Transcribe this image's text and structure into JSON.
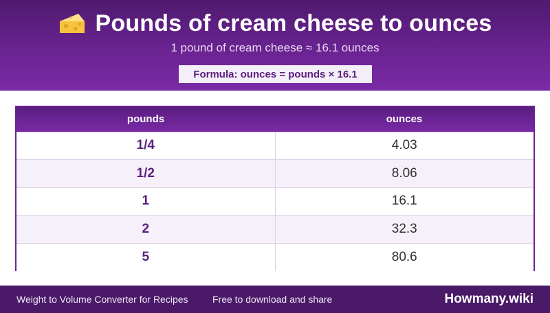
{
  "header": {
    "title": "Pounds of cream cheese to ounces",
    "icon": "cheese-icon",
    "subtitle": "1 pound of cream cheese ≈ 16.1 ounces",
    "formula": "Formula: ounces = pounds × 16.1"
  },
  "table": {
    "columns": [
      "pounds",
      "ounces"
    ],
    "rows": [
      {
        "pounds": "1/4",
        "ounces": "4.03"
      },
      {
        "pounds": "1/2",
        "ounces": "8.06"
      },
      {
        "pounds": "1",
        "ounces": "16.1"
      },
      {
        "pounds": "2",
        "ounces": "32.3"
      },
      {
        "pounds": "5",
        "ounces": "80.6"
      }
    ]
  },
  "footer": {
    "left": "Weight to Volume Converter for Recipes",
    "middle": "Free to download and share",
    "brand": "Howmany.wiki"
  },
  "colors": {
    "header_bg": "#6a2391",
    "footer_bg": "#4a1a68",
    "accent_text": "#5a1f7e"
  }
}
